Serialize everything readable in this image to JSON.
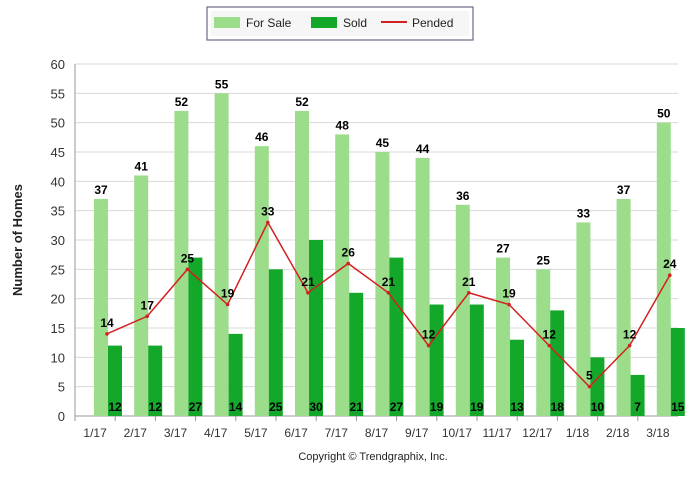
{
  "colors": {
    "for_sale": "#9cdd8c",
    "sold": "#14a82a",
    "pended": "#d42020",
    "grid": "#d8d8d8",
    "axis_text": "#333333",
    "label_text": "#000000"
  },
  "legend": {
    "for_sale": "For Sale",
    "sold": "Sold",
    "pended": "Pended"
  },
  "copyright": "Copyright © Trendgraphix, Inc.",
  "chart_data": {
    "type": "bar",
    "ylabel": "Number of Homes",
    "xlabel": "",
    "ylim": [
      0,
      60
    ],
    "y_ticks": [
      0,
      5,
      10,
      15,
      20,
      25,
      30,
      35,
      40,
      45,
      50,
      55,
      60
    ],
    "grid": true,
    "legend_position": "top-center",
    "categories": [
      "1/17",
      "2/17",
      "3/17",
      "4/17",
      "5/17",
      "6/17",
      "7/17",
      "8/17",
      "9/17",
      "10/17",
      "11/17",
      "12/17",
      "1/18",
      "2/18",
      "3/18"
    ],
    "series": [
      {
        "name": "For Sale",
        "type": "bar",
        "values": [
          37,
          41,
          52,
          55,
          46,
          52,
          48,
          45,
          44,
          36,
          27,
          25,
          33,
          37,
          50
        ]
      },
      {
        "name": "Sold",
        "type": "bar",
        "values": [
          12,
          12,
          27,
          14,
          25,
          30,
          21,
          27,
          19,
          19,
          13,
          18,
          10,
          7,
          15
        ]
      },
      {
        "name": "Pended",
        "type": "line",
        "values": [
          14,
          17,
          25,
          19,
          33,
          21,
          26,
          21,
          12,
          21,
          19,
          12,
          5,
          12,
          24
        ]
      }
    ]
  }
}
